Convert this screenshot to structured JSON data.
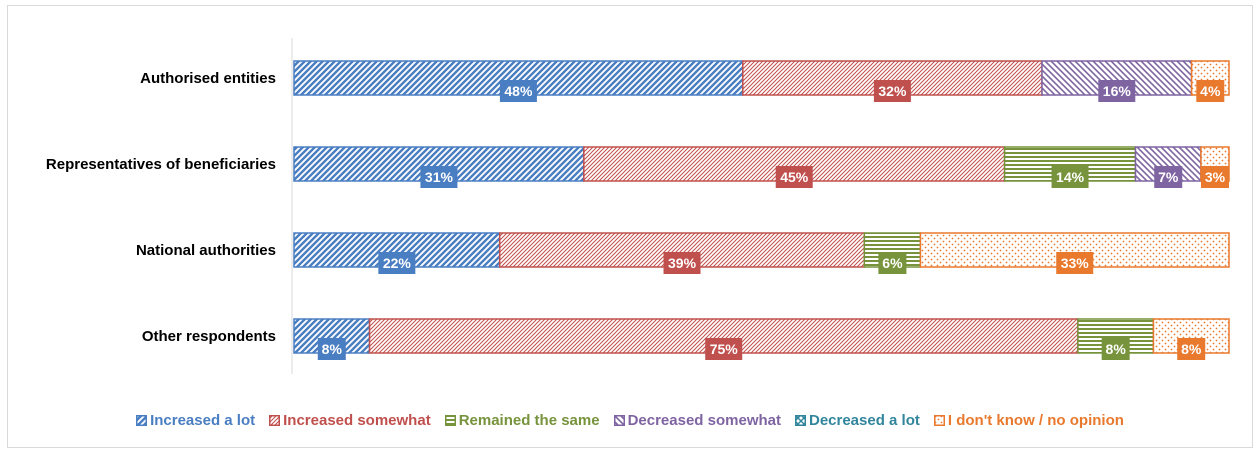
{
  "chart_data": {
    "type": "bar",
    "orientation": "horizontal",
    "stacked": true,
    "percent": true,
    "categories": [
      "Authorised entities",
      "Representatives of beneficiaries",
      "National authorities",
      "Other respondents"
    ],
    "series": [
      {
        "name": "Increased a lot",
        "values": [
          48,
          31,
          22,
          8
        ],
        "color": "#4a7ec2",
        "pattern": "wide-diagonal"
      },
      {
        "name": "Increased somewhat",
        "values": [
          32,
          45,
          39,
          75
        ],
        "color": "#c0504d",
        "pattern": "narrow-diagonal"
      },
      {
        "name": "Remained the same",
        "values": [
          0,
          14,
          6,
          8
        ],
        "color": "#77933c",
        "pattern": "horizontal-lines"
      },
      {
        "name": "Decreased somewhat",
        "values": [
          16,
          7,
          0,
          0
        ],
        "color": "#7f64a2",
        "pattern": "cross-diagonal"
      },
      {
        "name": "Decreased a lot",
        "values": [
          0,
          0,
          0,
          0
        ],
        "color": "#31859c",
        "pattern": "wave"
      },
      {
        "name": "I don't know / no opinion",
        "values": [
          4,
          3,
          33,
          8
        ],
        "color": "#e8792d",
        "pattern": "dots"
      }
    ],
    "data_labels": [
      [
        "48%",
        "31%",
        "22%",
        "8%"
      ],
      [
        "32%",
        "45%",
        "39%",
        "75%"
      ],
      [
        "",
        "14%",
        "6%",
        "8%"
      ],
      [
        "16%",
        "7%",
        "",
        ""
      ],
      [
        "",
        "",
        "",
        ""
      ],
      [
        "4%",
        "3%",
        "33%",
        "8%"
      ]
    ],
    "legend_position": "bottom",
    "grid": false
  }
}
